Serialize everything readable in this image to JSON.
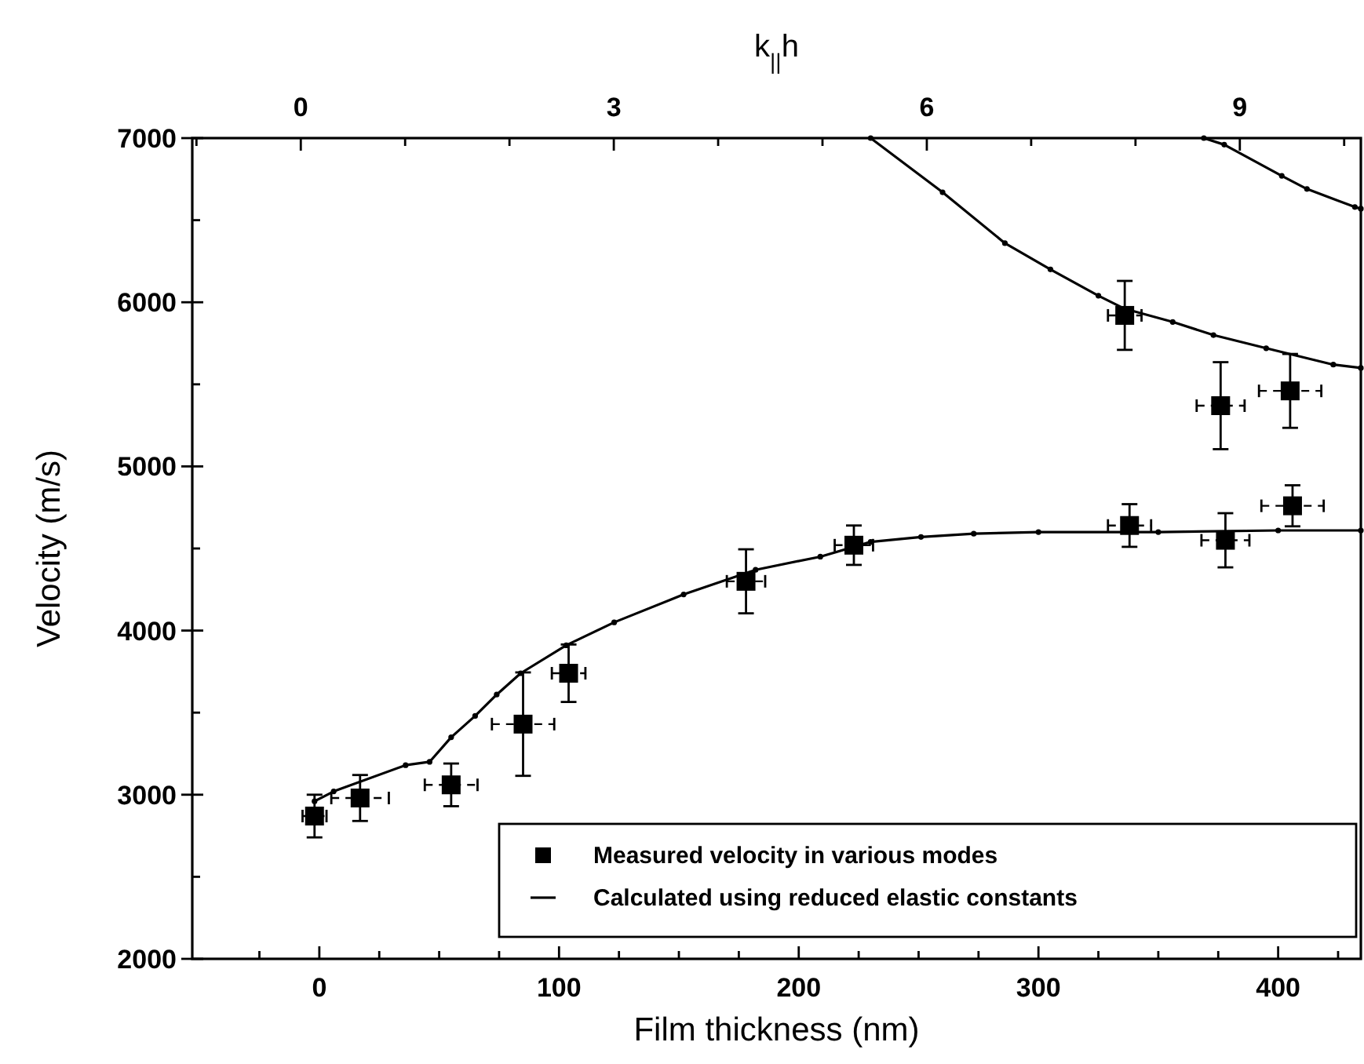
{
  "chart_data": {
    "type": "scatter",
    "xlabel": "Film thickness (nm)",
    "ylabel": "Velocity (m/s)",
    "x2label": "k$_{||}$h",
    "xlim": [
      -53,
      434.5
    ],
    "ylim": [
      2000,
      7000
    ],
    "x2lim": [
      -1.04,
      10.16
    ],
    "xticks": [
      {
        "value": -25,
        "label": null
      },
      0,
      {
        "value": 25,
        "label": null
      },
      {
        "value": 50,
        "label": null
      },
      {
        "value": 75,
        "label": null
      },
      100,
      {
        "value": 125,
        "label": null
      },
      {
        "value": 150,
        "label": null
      },
      {
        "value": 175,
        "label": null
      },
      200,
      {
        "value": 225,
        "label": null
      },
      {
        "value": 250,
        "label": null
      },
      {
        "value": 275,
        "label": null
      },
      300,
      {
        "value": 325,
        "label": null
      },
      {
        "value": 350,
        "label": null
      },
      {
        "value": 375,
        "label": null
      },
      400,
      {
        "value": 425,
        "label": null
      }
    ],
    "yticks": [
      2000,
      {
        "value": 2500,
        "label": null
      },
      3000,
      {
        "value": 3500,
        "label": null
      },
      4000,
      {
        "value": 4500,
        "label": null
      },
      5000,
      {
        "value": 5500,
        "label": null
      },
      6000,
      {
        "value": 6500,
        "label": null
      },
      7000
    ],
    "x2ticks": [
      {
        "value": -1,
        "label": null
      },
      0,
      {
        "value": 1,
        "label": null
      },
      {
        "value": 2,
        "label": null
      },
      3,
      {
        "value": 4,
        "label": null
      },
      {
        "value": 5,
        "label": null
      },
      6,
      {
        "value": 7,
        "label": null
      },
      {
        "value": 8,
        "label": null
      },
      9,
      {
        "value": 10,
        "label": null
      }
    ],
    "legend": "bottom right",
    "series": [
      {
        "name": "Measured velocity in various modes",
        "marker": "square",
        "color": "#000000",
        "x": [
          -2,
          17,
          55,
          85,
          104,
          178,
          223,
          336,
          376,
          405,
          338,
          378,
          406
        ],
        "values": [
          2870,
          2980,
          3060,
          3430,
          3740,
          4300,
          4520,
          5920,
          5370,
          5460,
          4640,
          4550,
          4760
        ],
        "errors": [
          130,
          140,
          130,
          315,
          175,
          195,
          120,
          210,
          265,
          225,
          130,
          165,
          125
        ],
        "xerrors": [
          5,
          12,
          11,
          13,
          7,
          8,
          8,
          7,
          10,
          13,
          9,
          10,
          13
        ]
      },
      {
        "name": "Calculated using reduced elastic constants",
        "type": "line",
        "marker": "circle",
        "color": "#000000",
        "x": [
          -2,
          6,
          36,
          46,
          55,
          65,
          74,
          84,
          103,
          123,
          152,
          182,
          209,
          230,
          251,
          273,
          300,
          350,
          400,
          434.5
        ],
        "values": [
          2960,
          3020,
          3180,
          3200,
          3350,
          3480,
          3610,
          3740,
          3910,
          4050,
          4220,
          4370,
          4450,
          4540,
          4570,
          4590,
          4600,
          4600,
          4610,
          4610
        ]
      },
      {
        "type": "line",
        "marker": "circle",
        "color": "#000000",
        "x": [
          230,
          260,
          286,
          305,
          325,
          336,
          356,
          373,
          395,
          423,
          434.5
        ],
        "values": [
          7000,
          6670,
          6360,
          6200,
          6040,
          5960,
          5880,
          5800,
          5720,
          5620,
          5600
        ]
      },
      {
        "type": "line",
        "marker": "circle",
        "color": "#000000",
        "x": [
          369,
          377.5,
          401.5,
          412,
          432,
          434.5
        ],
        "values": [
          7000,
          6960,
          6770,
          6690,
          6580,
          6570
        ]
      }
    ]
  }
}
